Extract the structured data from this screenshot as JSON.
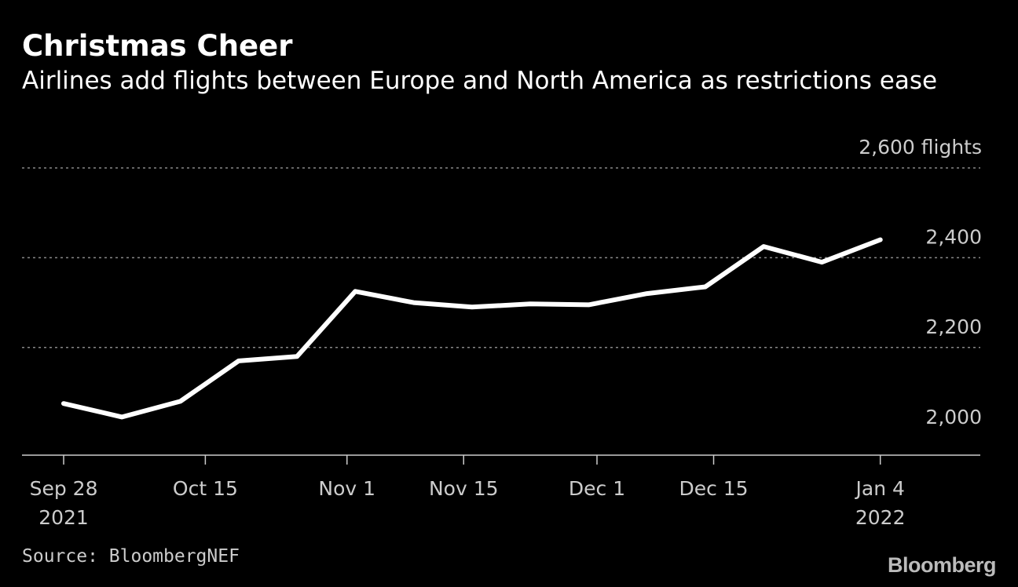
{
  "chart_data": {
    "type": "line",
    "title": "Christmas Cheer",
    "subtitle": "Airlines add flights between Europe and North America as restrictions ease",
    "ylabel": "flights",
    "ylim": [
      1960,
      2600
    ],
    "y_ticks": [
      {
        "value": 2000,
        "label": "2,000"
      },
      {
        "value": 2200,
        "label": "2,200"
      },
      {
        "value": 2400,
        "label": "2,400"
      },
      {
        "value": 2600,
        "label": "2,600 flights"
      }
    ],
    "x_ticks": [
      {
        "date": "2021-09-28",
        "lines": [
          "Sep 28",
          "2021"
        ]
      },
      {
        "date": "2021-10-15",
        "lines": [
          "Oct 15"
        ]
      },
      {
        "date": "2021-11-01",
        "lines": [
          "Nov 1"
        ]
      },
      {
        "date": "2021-11-15",
        "lines": [
          "Nov 15"
        ]
      },
      {
        "date": "2021-12-01",
        "lines": [
          "Dec 1"
        ]
      },
      {
        "date": "2021-12-15",
        "lines": [
          "Dec 15"
        ]
      },
      {
        "date": "2022-01-04",
        "lines": [
          "Jan 4",
          "2022"
        ]
      }
    ],
    "xlim": [
      "2021-09-23",
      "2022-01-16"
    ],
    "grid": true,
    "series": [
      {
        "color": "#ffffff",
        "x": [
          "2021-09-28",
          "2021-10-05",
          "2021-10-12",
          "2021-10-19",
          "2021-10-26",
          "2021-11-02",
          "2021-11-09",
          "2021-11-16",
          "2021-11-23",
          "2021-11-30",
          "2021-12-07",
          "2021-12-14",
          "2021-12-21",
          "2021-12-28",
          "2022-01-04"
        ],
        "values": [
          2075,
          2045,
          2080,
          2170,
          2180,
          2325,
          2300,
          2290,
          2297,
          2295,
          2320,
          2335,
          2425,
          2390,
          2440
        ]
      }
    ]
  },
  "source": "Source: BloombergNEF",
  "brand": "Bloomberg",
  "colors": {
    "background": "#000000",
    "line": "#ffffff",
    "grid": "#888888",
    "axis": "#cccccc"
  }
}
